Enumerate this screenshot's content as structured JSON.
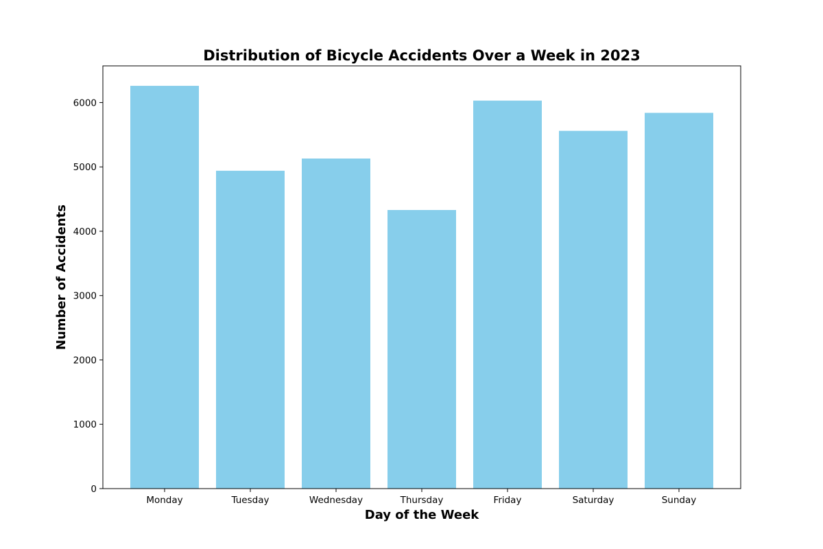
{
  "chart_data": {
    "type": "bar",
    "title": "Distribution of Bicycle Accidents Over a Week in 2023",
    "xlabel": "Day of the Week",
    "ylabel": "Number of Accidents",
    "categories": [
      "Monday",
      "Tuesday",
      "Wednesday",
      "Thursday",
      "Friday",
      "Saturday",
      "Sunday"
    ],
    "values": [
      6260,
      4940,
      5130,
      4330,
      6030,
      5560,
      5840
    ],
    "ylim": [
      0,
      6570
    ],
    "yticks": [
      0,
      1000,
      2000,
      3000,
      4000,
      5000,
      6000
    ],
    "bar_color": "#87CEEB",
    "grid": false,
    "legend": "none"
  }
}
